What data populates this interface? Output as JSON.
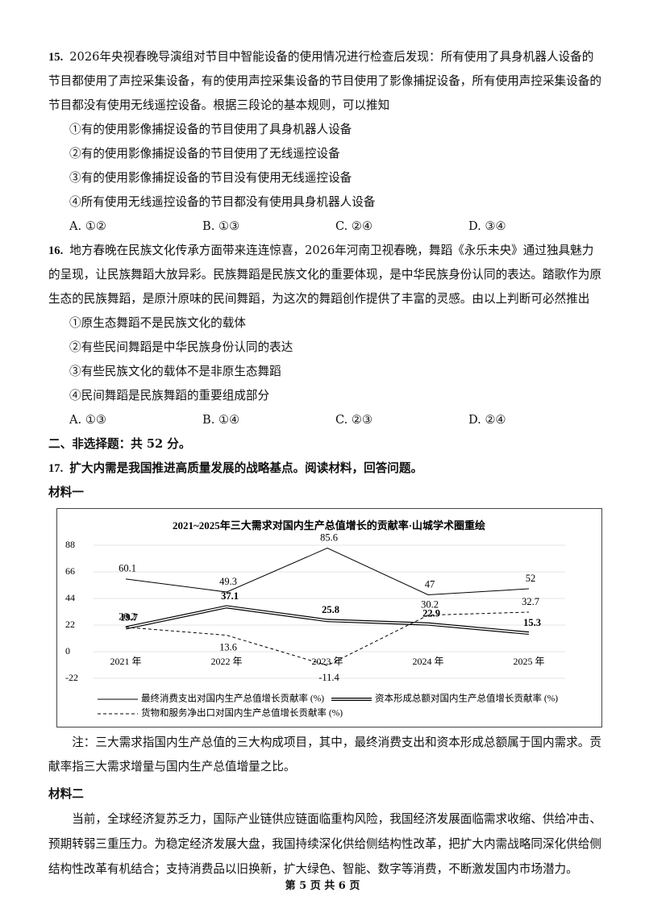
{
  "questions": [
    {
      "number": "15.",
      "stem": "2026年央视春晚导演组对节目中智能设备的使用情况进行检查后发现：所有使用了具身机器人设备的节目都使用了声控采集设备，有的使用声控采集设备的节目使用了影像捕捉设备，所有使用声控采集设备的节目都没有使用无线遥控设备。根据三段论的基本规则，可以推知",
      "options": [
        "①有的使用影像捕捉设备的节目使用了具身机器人设备",
        "②有的使用影像捕捉设备的节目使用了无线遥控设备",
        "③有的使用影像捕捉设备的节目没有使用无线遥控设备",
        "④所有使用无线遥控设备的节目都没有使用具身机器人设备"
      ],
      "choices": [
        "A. ①②",
        "B. ①③",
        "C. ②④",
        "D. ③④"
      ]
    },
    {
      "number": "16.",
      "stem": "地方春晚在民族文化传承方面带来连连惊喜，2026年河南卫视春晚，舞蹈《永乐未央》通过独具魅力的呈现，让民族舞蹈大放异彩。民族舞蹈是民族文化的重要体现，是中华民族身份认同的表达。踏歌作为原生态的民族舞蹈，是原汁原味的民间舞蹈，为这次的舞蹈创作提供了丰富的灵感。由以上判断可必然推出",
      "options": [
        "①原生态舞蹈不是民族文化的载体",
        "②有些民间舞蹈是中华民族身份认同的表达",
        "③有些民族文化的载体不是非原生态舞蹈",
        "④民间舞蹈是民族舞蹈的重要组成部分"
      ],
      "choices": [
        "A. ①③",
        "B. ①④",
        "C. ②③",
        "D. ②④"
      ]
    }
  ],
  "section": "二、非选择题：共 52 分。",
  "q17": {
    "number": "17.",
    "stem": "扩大内需是我国推进高质量发展的战略基点。阅读材料，回答问题。"
  },
  "material1": {
    "label": "材料一",
    "note": "注：三大需求指国内生产总值的三大构成项目，其中，最终消费支出和资本形成总额属于国内需求。贡献率指三大需求增量与国内生产总值增量之比。"
  },
  "chart_data": {
    "type": "line",
    "title": "2021~2025年三大需求对国内生产总值增长的贡献率·山城学术圈重绘",
    "categories": [
      "2021 年",
      "2022 年",
      "2023 年",
      "2024 年",
      "2025 年"
    ],
    "series": [
      {
        "name": "最终消费支出对国内生产总值增长贡献率 (%)",
        "color": "#000000",
        "style": "solid",
        "values": [
          60.1,
          49.3,
          85.6,
          47,
          52
        ]
      },
      {
        "name": "资本形成总额对国内生产总值增长贡献率 (%)",
        "color": "#000000",
        "style": "double",
        "values": [
          19.7,
          37.1,
          25.8,
          22.9,
          15.3
        ]
      },
      {
        "name": "货物和服务净出口对国内生产总值增长贡献率 (%)",
        "color": "#000000",
        "style": "dashed",
        "values": [
          20.2,
          13.6,
          -11.4,
          30.2,
          32.7
        ]
      }
    ],
    "ylim": [
      -22,
      88
    ],
    "yticks": [
      -22,
      0,
      22,
      44,
      66,
      88
    ],
    "grid": true
  },
  "material2": {
    "label": "材料二",
    "text": "当前，全球经济复苏乏力，国际产业链供应链面临重构风险，我国经济发展面临需求收缩、供给冲击、预期转弱三重压力。为稳定经济发展大盘，我国持续深化供给侧结构性改革，把扩大内需战略同深化供给侧结构性改革有机结合；支持消费品以旧换新，扩大绿色、智能、数字等消费，不断激发国内市场潜力。"
  },
  "footer": "第 5 页 共 6 页"
}
